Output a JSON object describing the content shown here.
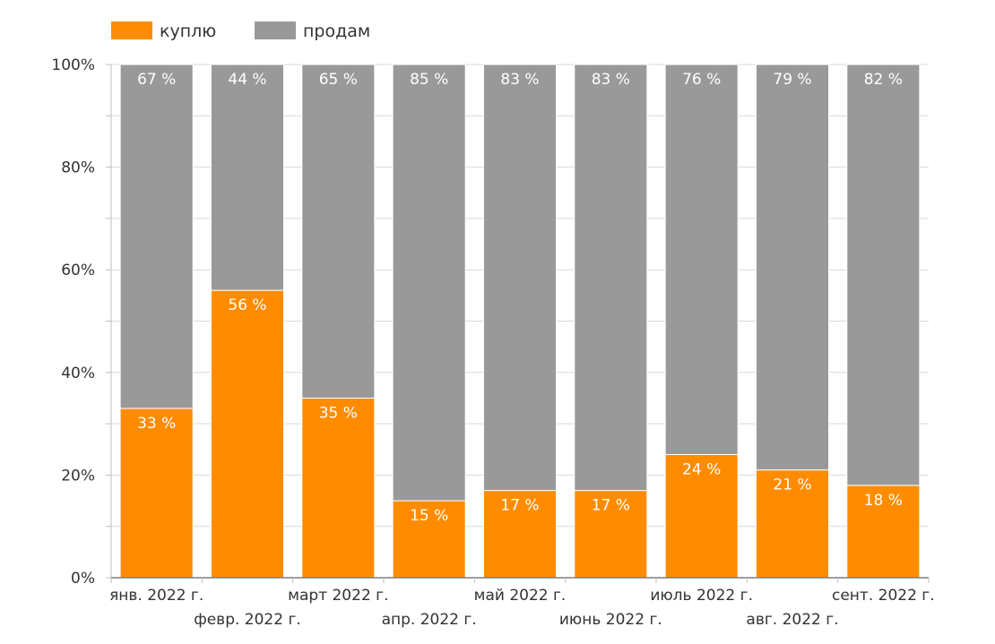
{
  "chart_data": {
    "type": "bar",
    "stacked": true,
    "percent": true,
    "categories": [
      "янв. 2022 г.",
      "февр. 2022 г.",
      "март 2022 г.",
      "апр. 2022 г.",
      "май 2022 г.",
      "июнь 2022 г.",
      "июль 2022 г.",
      "авг. 2022 г.",
      "сент. 2022 г."
    ],
    "series": [
      {
        "name": "куплю",
        "color": "#ff8c00",
        "values": [
          33,
          56,
          35,
          15,
          17,
          17,
          24,
          21,
          18
        ],
        "labels": [
          "33 %",
          "56 %",
          "35 %",
          "15 %",
          "17 %",
          "17 %",
          "24 %",
          "21 %",
          "18 %"
        ]
      },
      {
        "name": "продам",
        "color": "#999999",
        "values": [
          67,
          44,
          65,
          85,
          83,
          83,
          76,
          79,
          82
        ],
        "labels": [
          "67 %",
          "44 %",
          "65 %",
          "85 %",
          "83 %",
          "83 %",
          "76 %",
          "79 %",
          "82 %"
        ]
      }
    ],
    "ylim": [
      0,
      100
    ],
    "yticks": [
      0,
      20,
      40,
      60,
      80,
      100
    ],
    "ytick_labels": [
      "0%",
      "20%",
      "40%",
      "60%",
      "80%",
      "100%"
    ],
    "grid": true,
    "legend": "top-left",
    "title": "",
    "xlabel": "",
    "ylabel": ""
  }
}
